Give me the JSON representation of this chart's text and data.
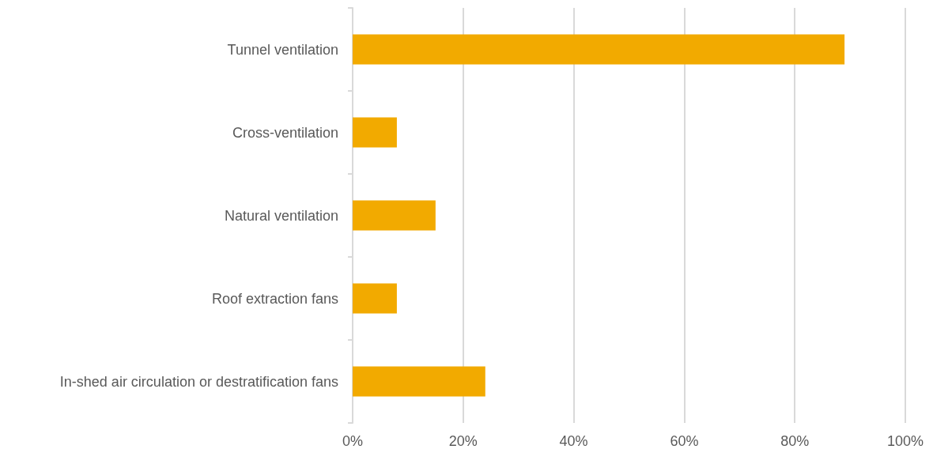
{
  "chart_data": {
    "type": "bar",
    "orientation": "horizontal",
    "categories": [
      "Tunnel ventilation",
      "Cross-ventilation",
      "Natural ventilation",
      "Roof extraction fans",
      "In-shed air circulation or destratification fans"
    ],
    "values": [
      89,
      8,
      15,
      8,
      24
    ],
    "color": "#f2aa00",
    "xlim": [
      0,
      100
    ],
    "xticks": [
      {
        "value": 0,
        "label": "0%"
      },
      {
        "value": 20,
        "label": "20%"
      },
      {
        "value": 40,
        "label": "40%"
      },
      {
        "value": 60,
        "label": "60%"
      },
      {
        "value": 80,
        "label": "80%"
      },
      {
        "value": 100,
        "label": "100%"
      }
    ],
    "grid": "x"
  }
}
